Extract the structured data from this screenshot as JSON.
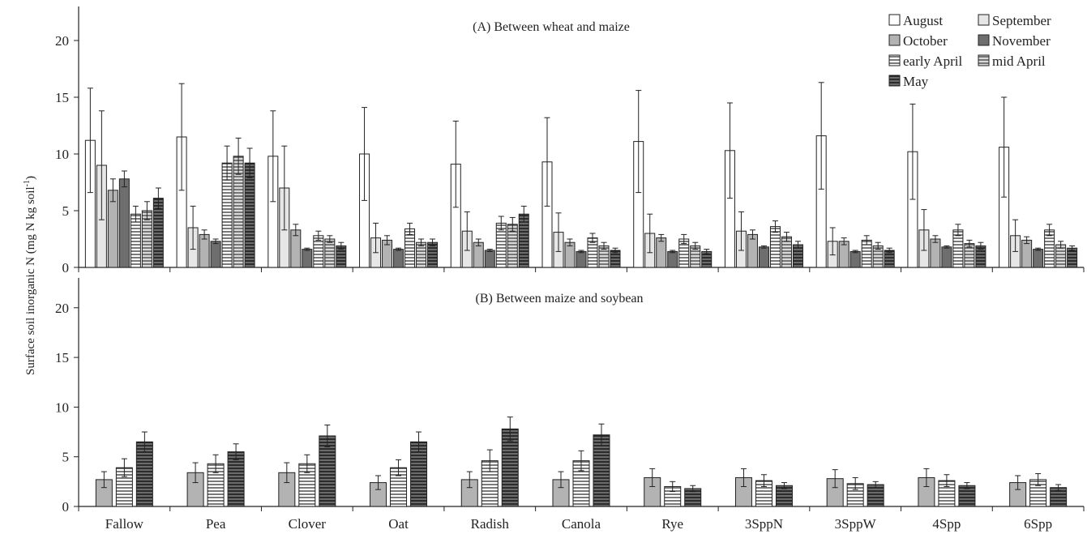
{
  "chart_data": {
    "type": "bar",
    "ylabel": "Surface soil inorganic N (mg N kg soil",
    "ylabel_sup": "-1",
    "ylabel_close": ")",
    "categories": [
      "Fallow",
      "Pea",
      "Clover",
      "Oat",
      "Radish",
      "Canola",
      "Rye",
      "3SppN",
      "3SppW",
      "4Spp",
      "6Spp"
    ],
    "legend": {
      "placement": "top-right",
      "entries": [
        {
          "name": "August",
          "pattern": "white"
        },
        {
          "name": "September",
          "pattern": "lightgray"
        },
        {
          "name": "October",
          "pattern": "gray"
        },
        {
          "name": "November",
          "pattern": "darkgray"
        },
        {
          "name": "early April",
          "pattern": "hlines"
        },
        {
          "name": "mid April",
          "pattern": "hlines-gray"
        },
        {
          "name": "May",
          "pattern": "hlines-dark"
        }
      ]
    },
    "panels": [
      {
        "title": "(A) Between wheat and maize",
        "ylim": [
          0,
          23
        ],
        "yticks": [
          0,
          5,
          10,
          15,
          20
        ],
        "series": [
          {
            "name": "August",
            "pattern": "white",
            "values": [
              11.2,
              11.5,
              9.8,
              10.0,
              9.1,
              9.3,
              11.1,
              10.3,
              11.6,
              10.2,
              10.6
            ],
            "errors": [
              4.6,
              4.7,
              4.0,
              4.1,
              3.8,
              3.9,
              4.5,
              4.2,
              4.7,
              4.2,
              4.4
            ]
          },
          {
            "name": "September",
            "pattern": "lightgray",
            "values": [
              9.0,
              3.5,
              7.0,
              2.6,
              3.2,
              3.1,
              3.0,
              3.2,
              2.3,
              3.3,
              2.8
            ],
            "errors": [
              4.8,
              1.9,
              3.7,
              1.3,
              1.7,
              1.7,
              1.7,
              1.7,
              1.2,
              1.8,
              1.4
            ]
          },
          {
            "name": "October",
            "pattern": "gray",
            "values": [
              6.8,
              2.9,
              3.3,
              2.4,
              2.2,
              2.2,
              2.6,
              2.9,
              2.3,
              2.5,
              2.4
            ],
            "errors": [
              1.0,
              0.4,
              0.5,
              0.4,
              0.3,
              0.3,
              0.3,
              0.4,
              0.3,
              0.3,
              0.3
            ]
          },
          {
            "name": "November",
            "pattern": "darkgray",
            "values": [
              7.8,
              2.3,
              1.6,
              1.6,
              1.5,
              1.4,
              1.4,
              1.8,
              1.4,
              1.8,
              1.6
            ],
            "errors": [
              0.7,
              0.2,
              0.1,
              0.1,
              0.1,
              0.1,
              0.1,
              0.1,
              0.1,
              0.1,
              0.1
            ]
          },
          {
            "name": "early April",
            "pattern": "hlines",
            "values": [
              4.7,
              9.2,
              2.8,
              3.4,
              3.9,
              2.6,
              2.5,
              3.6,
              2.4,
              3.3,
              3.3
            ],
            "errors": [
              0.7,
              1.5,
              0.4,
              0.5,
              0.6,
              0.4,
              0.4,
              0.5,
              0.4,
              0.5,
              0.5
            ]
          },
          {
            "name": "mid April",
            "pattern": "hlines-gray",
            "values": [
              5.0,
              9.8,
              2.5,
              2.2,
              3.8,
              1.9,
              1.9,
              2.7,
              1.9,
              2.1,
              2.0
            ],
            "errors": [
              0.8,
              1.6,
              0.3,
              0.3,
              0.6,
              0.3,
              0.3,
              0.4,
              0.3,
              0.3,
              0.3
            ]
          },
          {
            "name": "May",
            "pattern": "hlines-dark",
            "values": [
              6.1,
              9.2,
              1.9,
              2.2,
              4.7,
              1.5,
              1.4,
              2.0,
              1.5,
              1.9,
              1.7
            ],
            "errors": [
              0.9,
              1.3,
              0.3,
              0.3,
              0.7,
              0.2,
              0.2,
              0.3,
              0.2,
              0.3,
              0.2
            ]
          }
        ]
      },
      {
        "title": "(B) Between maize and soybean",
        "ylim": [
          0,
          23
        ],
        "yticks": [
          0,
          5,
          10,
          15,
          20
        ],
        "series": [
          {
            "name": "October",
            "pattern": "gray",
            "values": [
              2.7,
              3.4,
              3.4,
              2.4,
              2.7,
              2.7,
              2.9,
              2.9,
              2.8,
              2.9,
              2.4
            ],
            "errors": [
              0.8,
              1.0,
              1.0,
              0.7,
              0.8,
              0.8,
              0.9,
              0.9,
              0.9,
              0.9,
              0.7
            ]
          },
          {
            "name": "early April",
            "pattern": "hlines",
            "values": [
              3.9,
              4.3,
              4.3,
              3.9,
              4.6,
              4.6,
              2.0,
              2.6,
              2.3,
              2.6,
              2.7
            ],
            "errors": [
              0.9,
              0.9,
              0.9,
              0.8,
              1.1,
              1.0,
              0.5,
              0.6,
              0.6,
              0.6,
              0.6
            ]
          },
          {
            "name": "May",
            "pattern": "hlines-dark",
            "values": [
              6.5,
              5.5,
              7.1,
              6.5,
              7.8,
              7.2,
              1.8,
              2.1,
              2.2,
              2.1,
              1.9
            ],
            "errors": [
              1.0,
              0.8,
              1.1,
              1.0,
              1.2,
              1.1,
              0.3,
              0.3,
              0.3,
              0.3,
              0.3
            ]
          }
        ]
      }
    ]
  }
}
